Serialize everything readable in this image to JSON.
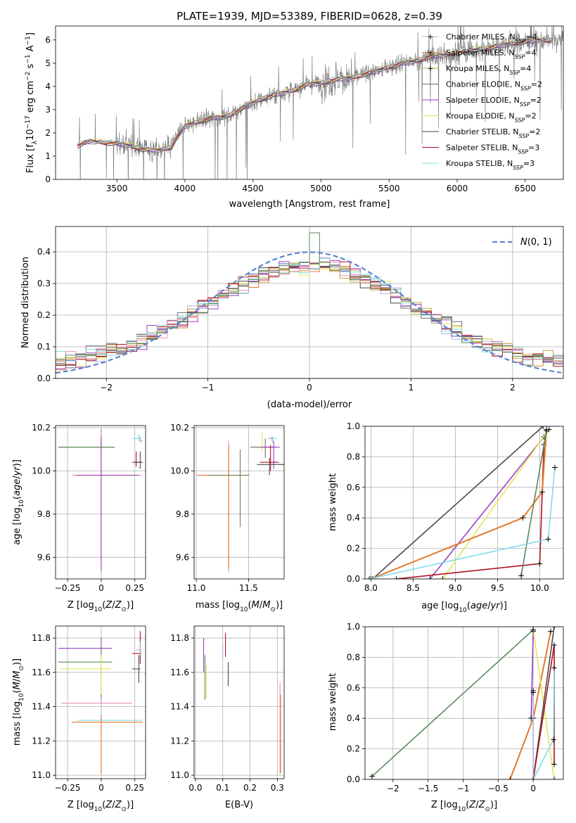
{
  "title": "PLATE=1939, MJD=53389, FIBERID=0628, z=0.39",
  "colors": {
    "data": "#808080",
    "model": [
      "#a9b6e0",
      "#e07a2e",
      "#c8a040",
      "#6e6e6e",
      "#9a3fc0",
      "#e6e35a",
      "#4a4a4a",
      "#b01020",
      "#7fdce8"
    ],
    "extra": [
      "#e98fc0",
      "#5a8a5a"
    ],
    "normal": "#5b84d6"
  },
  "legend_items": [
    {
      "text": "Chabrier MILES, N",
      "sub": "SSP",
      "tail": "=4"
    },
    {
      "text": "Salpeter MILES, N",
      "sub": "SSP",
      "tail": "=4"
    },
    {
      "text": "Kroupa MILES, N",
      "sub": "SSP",
      "tail": "=4"
    },
    {
      "text": "Chabrier ELODIE, N",
      "sub": "SSP",
      "tail": "=2"
    },
    {
      "text": "Salpeter ELODIE, N",
      "sub": "SSP",
      "tail": "=2"
    },
    {
      "text": "Kroupa ELODIE, N",
      "sub": "SSP",
      "tail": "=2"
    },
    {
      "text": "Chabrier STELIB, N",
      "sub": "SSP",
      "tail": "=2"
    },
    {
      "text": "Salpeter STELIB, N",
      "sub": "SSP",
      "tail": "=3"
    },
    {
      "text": "Kroupa STELIB, N",
      "sub": "SSP",
      "tail": "=3"
    }
  ],
  "chart_data": [
    {
      "id": "spectrum",
      "type": "line",
      "title": "PLATE=1939, MJD=53389, FIBERID=0628, z=0.39",
      "xlabel": "wavelength [Angstrom, rest frame]",
      "ylabel": "Flux [f_λ 10^-17 erg cm^-2 s^-1 A^-1]",
      "xlim": [
        3050,
        6780
      ],
      "ylim": [
        0,
        6.6
      ],
      "xticks": [
        3500,
        4000,
        4500,
        5000,
        5500,
        6000,
        6500
      ],
      "yticks": [
        0,
        1,
        2,
        3,
        4,
        5,
        6
      ],
      "legend": "upper right",
      "continuum": [
        [
          3200,
          0.0
        ],
        [
          3210,
          1.45
        ],
        [
          3300,
          1.65
        ],
        [
          3400,
          1.6
        ],
        [
          3500,
          1.55
        ],
        [
          3600,
          1.45
        ],
        [
          3700,
          1.3
        ],
        [
          3800,
          1.25
        ],
        [
          3900,
          1.4
        ],
        [
          3950,
          1.9
        ],
        [
          4000,
          2.3
        ],
        [
          4100,
          2.5
        ],
        [
          4200,
          2.65
        ],
        [
          4300,
          2.7
        ],
        [
          4400,
          3.0
        ],
        [
          4500,
          3.3
        ],
        [
          4600,
          3.55
        ],
        [
          4700,
          3.7
        ],
        [
          4800,
          3.85
        ],
        [
          4900,
          4.1
        ],
        [
          5000,
          4.15
        ],
        [
          5100,
          4.3
        ],
        [
          5200,
          4.35
        ],
        [
          5300,
          4.5
        ],
        [
          5400,
          4.65
        ],
        [
          5500,
          4.85
        ],
        [
          5600,
          5.0
        ],
        [
          5700,
          5.1
        ],
        [
          5800,
          5.3
        ],
        [
          5900,
          5.35
        ],
        [
          6000,
          5.45
        ],
        [
          6100,
          5.55
        ],
        [
          6200,
          5.65
        ],
        [
          6300,
          5.75
        ],
        [
          6400,
          5.85
        ],
        [
          6500,
          5.95
        ],
        [
          6600,
          6.0
        ]
      ]
    },
    {
      "id": "residuals",
      "type": "histogram",
      "xlabel": "(data-model)/error",
      "ylabel": "Normed distribution",
      "xlim": [
        -2.5,
        2.5
      ],
      "ylim": [
        0,
        0.48
      ],
      "xticks": [
        -2,
        -1,
        0,
        1,
        2
      ],
      "yticks": [
        0.0,
        0.1,
        0.2,
        0.3,
        0.4
      ],
      "legend_label": "N(0,1)",
      "bin_width": 0.1,
      "normal_curve": {
        "mean": 0,
        "sigma": 1,
        "style": "dashed"
      }
    },
    {
      "id": "age_vs_Z",
      "type": "errorbar",
      "xlabel": "Z [log10(Z/Z⊙)]",
      "ylabel": "age [log10(age/yr)]",
      "xlim": [
        -0.34,
        0.33
      ],
      "ylim": [
        9.5,
        10.21
      ],
      "xticks": [
        -0.25,
        0.0,
        0.25
      ],
      "yticks": [
        9.6,
        9.8,
        10.0,
        10.2
      ],
      "points": [
        {
          "x": 0.0,
          "y": 10.11,
          "xerr": [
            0.32,
            0.1
          ],
          "yerr": [
            0.02,
            0.08
          ],
          "c": 3
        },
        {
          "x": 0.0,
          "y": 10.11,
          "xerr": [
            0.3,
            0.08
          ],
          "yerr": [
            0.02,
            0.07
          ],
          "c": 5
        },
        {
          "x": 0.0,
          "y": 10.11,
          "xerr": [
            0.31,
            0.09
          ],
          "yerr": [
            0.03,
            0.02
          ],
          "c": 10
        },
        {
          "x": 0.0,
          "y": 9.98,
          "xerr": [
            0.22,
            0.3
          ],
          "yerr": [
            0.45,
            0.2
          ],
          "c": 9
        },
        {
          "x": 0.0,
          "y": 9.98,
          "xerr": [
            0.2,
            0.26
          ],
          "yerr": [
            0.4,
            0.16
          ],
          "c": 1
        },
        {
          "x": 0.0,
          "y": 9.98,
          "xerr": [
            0.18,
            0.28
          ],
          "yerr": [
            0.44,
            0.18
          ],
          "c": 4
        },
        {
          "x": 0.26,
          "y": 10.04,
          "xerr": [
            0.03,
            0.04
          ],
          "yerr": [
            0.02,
            0.05
          ],
          "c": 7
        },
        {
          "x": 0.29,
          "y": 10.04,
          "xerr": [
            0.05,
            0.02
          ],
          "yerr": [
            0.03,
            0.05
          ],
          "c": 6
        },
        {
          "x": 0.28,
          "y": 10.15,
          "xerr": [
            0.05,
            0.02
          ],
          "yerr": [
            0.01,
            0.02
          ],
          "c": 8
        },
        {
          "x": 0.29,
          "y": 10.14,
          "xerr": [
            0.01,
            0.02
          ],
          "yerr": [
            0.01,
            0.02
          ],
          "c": 0
        }
      ]
    },
    {
      "id": "age_vs_mass",
      "type": "errorbar",
      "xlabel": "mass [log10(M/M⊙)]",
      "ylabel": "",
      "xlim": [
        10.98,
        11.84
      ],
      "ylim": [
        9.5,
        10.21
      ],
      "xticks": [
        11.0,
        11.5
      ],
      "yticks": [
        9.6,
        9.8,
        10.0,
        10.2
      ],
      "points": [
        {
          "x": 11.31,
          "y": 9.98,
          "xerr": [
            0.31,
            0.18
          ],
          "yerr": [
            0.45,
            0.16
          ],
          "c": 9
        },
        {
          "x": 11.31,
          "y": 9.98,
          "xerr": [
            0.3,
            0.2
          ],
          "yerr": [
            0.43,
            0.14
          ],
          "c": 1
        },
        {
          "x": 11.42,
          "y": 9.98,
          "xerr": [
            0.3,
            0.08
          ],
          "yerr": [
            0.24,
            0.12
          ],
          "c": 10
        },
        {
          "x": 11.63,
          "y": 10.11,
          "xerr": [
            0.12,
            0.1
          ],
          "yerr": [
            0.02,
            0.07
          ],
          "c": 5
        },
        {
          "x": 11.66,
          "y": 10.11,
          "xerr": [
            0.14,
            0.1
          ],
          "yerr": [
            0.05,
            0.04
          ],
          "c": 3
        },
        {
          "x": 11.74,
          "y": 10.11,
          "xerr": [
            0.12,
            0.06
          ],
          "yerr": [
            0.1,
            0.03
          ],
          "c": 4
        },
        {
          "x": 11.7,
          "y": 10.03,
          "xerr": [
            0.12,
            0.14
          ],
          "yerr": [
            0.05,
            0.03
          ],
          "c": 6
        },
        {
          "x": 11.71,
          "y": 10.04,
          "xerr": [
            0.1,
            0.08
          ],
          "yerr": [
            0.04,
            0.08
          ],
          "c": 7
        },
        {
          "x": 11.73,
          "y": 10.15,
          "xerr": [
            0.05,
            0.04
          ],
          "yerr": [
            0.02,
            0.01
          ],
          "c": 8
        },
        {
          "x": 11.72,
          "y": 10.15,
          "xerr": [
            0.03,
            0.03
          ],
          "yerr": [
            0.01,
            0.01
          ],
          "c": 0
        }
      ]
    },
    {
      "id": "massweight_vs_age",
      "type": "line",
      "xlabel": "age [log10(age/yr)]",
      "ylabel": "mass weight",
      "xlim": [
        7.93,
        10.28
      ],
      "ylim": [
        0,
        1
      ],
      "xticks": [
        8.0,
        8.5,
        9.0,
        9.5,
        10.0
      ],
      "yticks": [
        0.0,
        0.2,
        0.4,
        0.6,
        0.8,
        1.0
      ],
      "series": [
        {
          "c": 6,
          "points": [
            [
              8.02,
              0.0
            ],
            [
              10.04,
              1.0
            ]
          ]
        },
        {
          "c": 4,
          "points": [
            [
              8.7,
              0.0
            ],
            [
              10.05,
              0.93
            ]
          ]
        },
        {
          "c": 5,
          "points": [
            [
              8.85,
              0.0
            ],
            [
              10.11,
              0.98
            ]
          ]
        },
        {
          "c": 7,
          "points": [
            [
              8.3,
              0.0
            ],
            [
              10.0,
              0.1
            ],
            [
              10.05,
              0.88
            ]
          ]
        },
        {
          "c": 1,
          "points": [
            [
              8.0,
              0.0
            ],
            [
              9.8,
              0.4
            ],
            [
              10.03,
              0.57
            ],
            [
              10.08,
              0.98
            ]
          ]
        },
        {
          "c": 10,
          "points": [
            [
              9.78,
              0.02
            ],
            [
              10.08,
              0.97
            ]
          ]
        },
        {
          "c": 8,
          "points": [
            [
              7.98,
              0.0
            ],
            [
              10.1,
              0.26
            ],
            [
              10.18,
              0.73
            ]
          ]
        }
      ]
    },
    {
      "id": "mass_vs_Z",
      "type": "errorbar",
      "xlabel": "Z [log10(Z/Z⊙)]",
      "ylabel": "mass [log10(M/M⊙)]",
      "xlim": [
        -0.34,
        0.33
      ],
      "ylim": [
        10.98,
        11.87
      ],
      "xticks": [
        -0.25,
        0.0,
        0.25
      ],
      "yticks": [
        11.0,
        11.2,
        11.4,
        11.6,
        11.8
      ],
      "points": [
        {
          "x": 0.0,
          "y": 11.74,
          "xerr": [
            0.32,
            0.08
          ],
          "yerr": [
            0.3,
            0.06
          ],
          "c": 4
        },
        {
          "x": 0.0,
          "y": 11.66,
          "xerr": [
            0.32,
            0.08
          ],
          "yerr": [
            0.2,
            0.1
          ],
          "c": 10
        },
        {
          "x": 0.0,
          "y": 11.62,
          "xerr": [
            0.3,
            0.07
          ],
          "yerr": [
            0.15,
            0.08
          ],
          "c": 5
        },
        {
          "x": 0.0,
          "y": 11.42,
          "xerr": [
            0.3,
            0.23
          ],
          "yerr": [
            0.03,
            0.03
          ],
          "c": 9
        },
        {
          "x": 0.0,
          "y": 11.32,
          "xerr": [
            0.18,
            0.3
          ],
          "yerr": [
            0.3,
            0.05
          ],
          "c": 8
        },
        {
          "x": 0.0,
          "y": 11.31,
          "xerr": [
            0.22,
            0.31
          ],
          "yerr": [
            0.3,
            0.04
          ],
          "c": 1
        },
        {
          "x": 0.0,
          "y": 11.02,
          "xerr": [
            0.0,
            0.0
          ],
          "yerr": [
            0.0,
            0.0
          ],
          "c": 3
        },
        {
          "x": 0.29,
          "y": 11.71,
          "xerr": [
            0.06,
            0.01
          ],
          "yerr": [
            0.06,
            0.13
          ],
          "c": 7
        },
        {
          "x": 0.28,
          "y": 11.62,
          "xerr": [
            0.05,
            0.01
          ],
          "yerr": [
            0.08,
            0.08
          ],
          "c": 6
        },
        {
          "x": 0.29,
          "y": 11.73,
          "xerr": [
            0.03,
            0.01
          ],
          "yerr": [
            0.03,
            0.05
          ],
          "c": 0
        }
      ]
    },
    {
      "id": "mass_vs_EBV",
      "type": "errorbar",
      "xlabel": "E(B-V)",
      "ylabel": "",
      "xlim": [
        -0.005,
        0.325
      ],
      "ylim": [
        10.98,
        11.87
      ],
      "xticks": [
        0.0,
        0.1,
        0.2,
        0.3
      ],
      "yticks": [
        11.0,
        11.2,
        11.4,
        11.6,
        11.8
      ],
      "points": [
        {
          "x": 0.03,
          "y": 11.66,
          "yerr": [
            0.06,
            0.14
          ],
          "c": 4
        },
        {
          "x": 0.035,
          "y": 11.58,
          "yerr": [
            0.14,
            0.12
          ],
          "c": 10
        },
        {
          "x": 0.04,
          "y": 11.58,
          "yerr": [
            0.13,
            0.06
          ],
          "c": 5
        },
        {
          "x": 0.1,
          "y": 11.72,
          "yerr": [
            0.04,
            0.05
          ],
          "c": 0
        },
        {
          "x": 0.11,
          "y": 11.75,
          "yerr": [
            0.06,
            0.08
          ],
          "c": 7
        },
        {
          "x": 0.12,
          "y": 11.6,
          "yerr": [
            0.08,
            0.06
          ],
          "c": 6
        },
        {
          "x": 0.31,
          "y": 11.28,
          "yerr": [
            0.27,
            0.26
          ],
          "c": 9
        },
        {
          "x": 0.312,
          "y": 11.25,
          "yerr": [
            0.24,
            0.22
          ],
          "c": 1
        }
      ]
    },
    {
      "id": "massweight_vs_Z",
      "type": "line",
      "xlabel": "Z [log10(Z/Z⊙)]",
      "ylabel": "mass weight",
      "xlim": [
        -2.4,
        0.43
      ],
      "ylim": [
        0,
        1
      ],
      "xticks": [
        -2.0,
        -1.5,
        -1.0,
        -0.5,
        0.0
      ],
      "yticks": [
        0.0,
        0.2,
        0.4,
        0.6,
        0.8,
        1.0
      ],
      "series": [
        {
          "c": 10,
          "points": [
            [
              -2.3,
              0.02
            ],
            [
              0.0,
              0.98
            ]
          ]
        },
        {
          "c": 1,
          "points": [
            [
              -0.33,
              0.0
            ],
            [
              0.0,
              0.4
            ],
            [
              0.25,
              0.97
            ]
          ]
        },
        {
          "c": 4,
          "points": [
            [
              -0.03,
              0.4
            ],
            [
              0.0,
              0.97
            ]
          ]
        },
        {
          "c": 5,
          "points": [
            [
              0.0,
              0.98
            ],
            [
              0.3,
              0.0
            ]
          ]
        },
        {
          "c": 6,
          "points": [
            [
              0.0,
              0.0
            ],
            [
              0.3,
              1.0
            ]
          ]
        },
        {
          "c": 7,
          "points": [
            [
              0.0,
              0.0
            ],
            [
              0.3,
              0.88
            ],
            [
              0.3,
              0.1
            ]
          ]
        },
        {
          "c": 8,
          "points": [
            [
              0.0,
              0.0
            ],
            [
              0.29,
              0.26
            ],
            [
              0.3,
              0.73
            ]
          ]
        },
        {
          "c": 0,
          "points": [
            [
              0.0,
              0.0
            ],
            [
              0.0,
              0.57
            ],
            [
              0.0,
              0.58
            ]
          ]
        }
      ]
    }
  ]
}
